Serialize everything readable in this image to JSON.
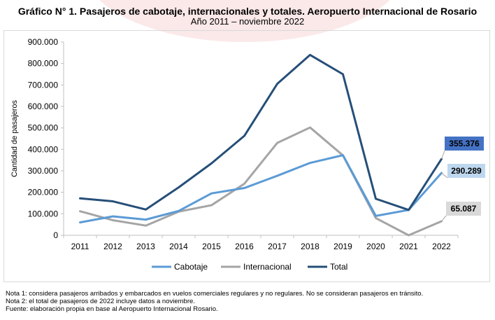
{
  "header": {
    "title": "Gráfico N° 1. Pasajeros de cabotaje, internacionales y totales. Aeropuerto Internacional de Rosario",
    "subtitle": "Año 2011 – noviembre 2022"
  },
  "notes": [
    "Nota 1: considera pasajeros arribados y embarcados en vuelos comerciales regulares y no regulares. No se consideran pasajeros en tránsito.",
    "Nota 2: el total de pasajeros de 2022 incluye datos a noviembre.",
    "Fuente: elaboración propia en base al Aeropuerto Internacional Rosario."
  ],
  "chart_data": {
    "type": "line",
    "title": "Gráfico N° 1. Pasajeros de cabotaje, internacionales y totales. Aeropuerto Internacional de Rosario",
    "subtitle": "Año 2011 – noviembre 2022",
    "xlabel": "",
    "ylabel": "Cantidad de pasajeros",
    "ylim": [
      0,
      900000
    ],
    "y_ticks": [
      {
        "value": 0,
        "label": "0"
      },
      {
        "value": 100000,
        "label": "100.000"
      },
      {
        "value": 200000,
        "label": "200.000"
      },
      {
        "value": 300000,
        "label": "300.000"
      },
      {
        "value": 400000,
        "label": "400.000"
      },
      {
        "value": 500000,
        "label": "500.000"
      },
      {
        "value": 600000,
        "label": "600.000"
      },
      {
        "value": 700000,
        "label": "700.000"
      },
      {
        "value": 800000,
        "label": "800.000"
      },
      {
        "value": 900000,
        "label": "900.000"
      }
    ],
    "categories": [
      "2011",
      "2012",
      "2013",
      "2014",
      "2015",
      "2016",
      "2017",
      "2018",
      "2019",
      "2020",
      "2021",
      "2022"
    ],
    "grid": false,
    "legend": "bottom",
    "series": [
      {
        "name": "Cabotaje",
        "color": "#5b9bd5",
        "values": [
          60000,
          88000,
          73000,
          113000,
          195000,
          220000,
          277000,
          337000,
          373000,
          90000,
          118000,
          290289
        ]
      },
      {
        "name": "Internacional",
        "color": "#a5a5a5",
        "values": [
          112000,
          70000,
          45000,
          110000,
          140000,
          240000,
          430000,
          502000,
          372000,
          80000,
          0,
          65087
        ]
      },
      {
        "name": "Total",
        "color": "#264f78",
        "values": [
          172000,
          158000,
          120000,
          223000,
          335000,
          463000,
          705000,
          840000,
          750000,
          170000,
          118000,
          355376
        ]
      }
    ],
    "annotations": [
      {
        "series": "Total",
        "category": "2022",
        "label": "355.376",
        "bg": "#4472c4",
        "fg": "#000000"
      },
      {
        "series": "Cabotaje",
        "category": "2022",
        "label": "290.289",
        "bg": "#bdd7ee",
        "fg": "#000000"
      },
      {
        "series": "Internacional",
        "category": "2022",
        "label": "65.087",
        "bg": "#d9d9d9",
        "fg": "#000000"
      }
    ]
  }
}
